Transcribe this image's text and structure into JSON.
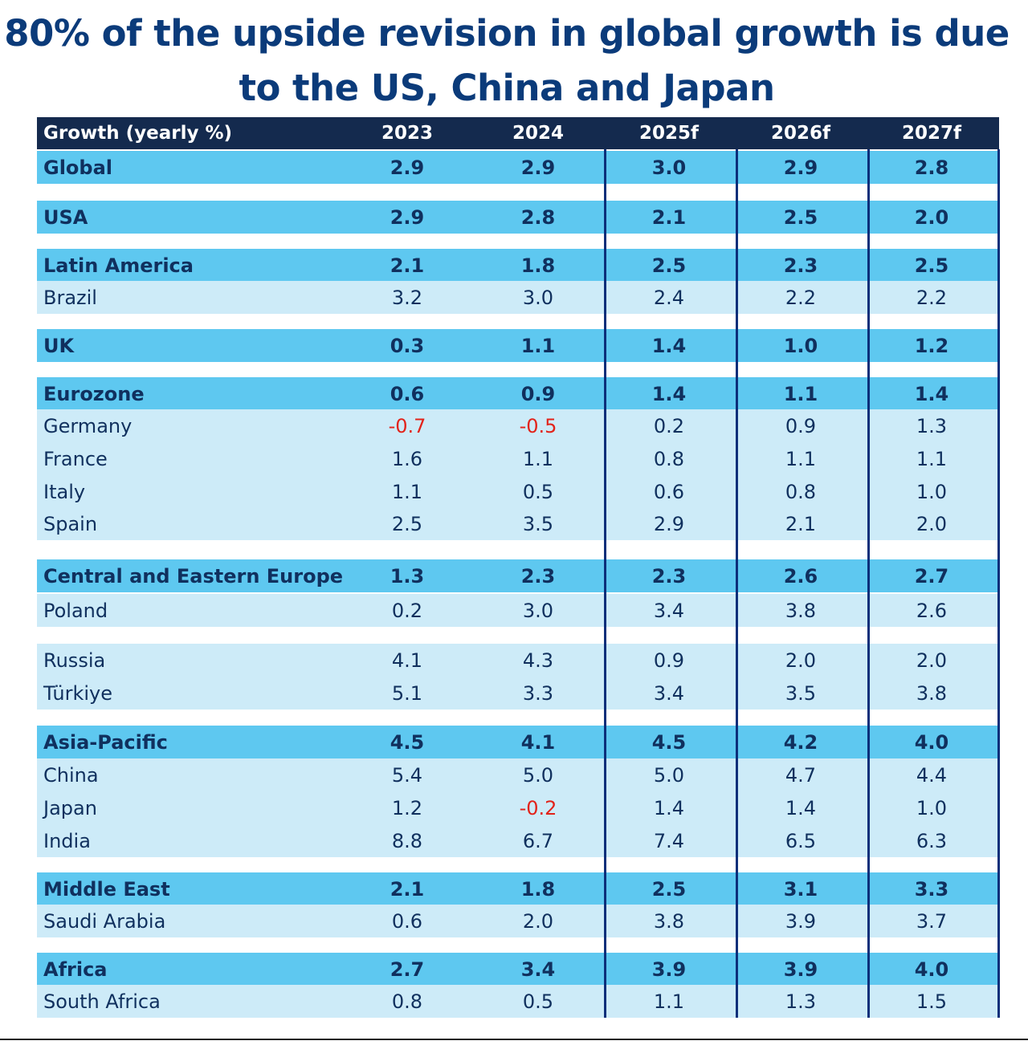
{
  "title": "80% of the upside revision in global growth is due to the US, China and Japan",
  "colors": {
    "header_bg": "#142a4e",
    "group_row": "#5ec8f0",
    "sub_row": "#cdebf8",
    "text": "#10305e",
    "negative": "#e2231a",
    "title": "#0b3b7a",
    "divider": "#0c2f7a"
  },
  "chart_data": {
    "type": "table",
    "title": "80% of the upside revision in global growth is due to the US, China and Japan",
    "columns": [
      "Growth (yearly %)",
      "2023",
      "2024",
      "2025f",
      "2026f",
      "2027f"
    ],
    "rows": [
      {
        "label": "Global",
        "kind": "group",
        "values": [
          "2.9",
          "2.9",
          "3.0",
          "2.9",
          "2.8"
        ]
      },
      {
        "label": "USA",
        "kind": "group",
        "values": [
          "2.9",
          "2.8",
          "2.1",
          "2.5",
          "2.0"
        ]
      },
      {
        "label": "Latin America",
        "kind": "group",
        "values": [
          "2.1",
          "1.8",
          "2.5",
          "2.3",
          "2.5"
        ]
      },
      {
        "label": "Brazil",
        "kind": "sub",
        "values": [
          "3.2",
          "3.0",
          "2.4",
          "2.2",
          "2.2"
        ]
      },
      {
        "label": "UK",
        "kind": "group",
        "values": [
          "0.3",
          "1.1",
          "1.4",
          "1.0",
          "1.2"
        ]
      },
      {
        "label": "Eurozone",
        "kind": "group",
        "values": [
          "0.6",
          "0.9",
          "1.4",
          "1.1",
          "1.4"
        ]
      },
      {
        "label": "Germany",
        "kind": "sub",
        "values": [
          "-0.7",
          "-0.5",
          "0.2",
          "0.9",
          "1.3"
        ]
      },
      {
        "label": "France",
        "kind": "sub",
        "values": [
          "1.6",
          "1.1",
          "0.8",
          "1.1",
          "1.1"
        ]
      },
      {
        "label": "Italy",
        "kind": "sub",
        "values": [
          "1.1",
          "0.5",
          "0.6",
          "0.8",
          "1.0"
        ]
      },
      {
        "label": "Spain",
        "kind": "sub",
        "values": [
          "2.5",
          "3.5",
          "2.9",
          "2.1",
          "2.0"
        ]
      },
      {
        "label": "Central and Eastern Europe",
        "kind": "group",
        "values": [
          "1.3",
          "2.3",
          "2.3",
          "2.6",
          "2.7"
        ]
      },
      {
        "label": "Poland",
        "kind": "sub",
        "values": [
          "0.2",
          "3.0",
          "3.4",
          "3.8",
          "2.6"
        ]
      },
      {
        "label": "Russia",
        "kind": "sub",
        "values": [
          "4.1",
          "4.3",
          "0.9",
          "2.0",
          "2.0"
        ]
      },
      {
        "label": "Türkiye",
        "kind": "sub",
        "values": [
          "5.1",
          "3.3",
          "3.4",
          "3.5",
          "3.8"
        ]
      },
      {
        "label": "Asia-Pacific",
        "kind": "group",
        "values": [
          "4.5",
          "4.1",
          "4.5",
          "4.2",
          "4.0"
        ]
      },
      {
        "label": "China",
        "kind": "sub",
        "values": [
          "5.4",
          "5.0",
          "5.0",
          "4.7",
          "4.4"
        ]
      },
      {
        "label": "Japan",
        "kind": "sub",
        "values": [
          "1.2",
          "-0.2",
          "1.4",
          "1.4",
          "1.0"
        ]
      },
      {
        "label": "India",
        "kind": "sub",
        "values": [
          "8.8",
          "6.7",
          "7.4",
          "6.5",
          "6.3"
        ]
      },
      {
        "label": "Middle East",
        "kind": "group",
        "values": [
          "2.1",
          "1.8",
          "2.5",
          "3.1",
          "3.3"
        ]
      },
      {
        "label": "Saudi Arabia",
        "kind": "sub",
        "values": [
          "0.6",
          "2.0",
          "3.8",
          "3.9",
          "3.7"
        ]
      },
      {
        "label": "Africa",
        "kind": "group",
        "values": [
          "2.7",
          "3.4",
          "3.9",
          "3.9",
          "4.0"
        ]
      },
      {
        "label": "South Africa",
        "kind": "sub",
        "values": [
          "0.8",
          "0.5",
          "1.1",
          "1.3",
          "1.5"
        ]
      }
    ]
  }
}
